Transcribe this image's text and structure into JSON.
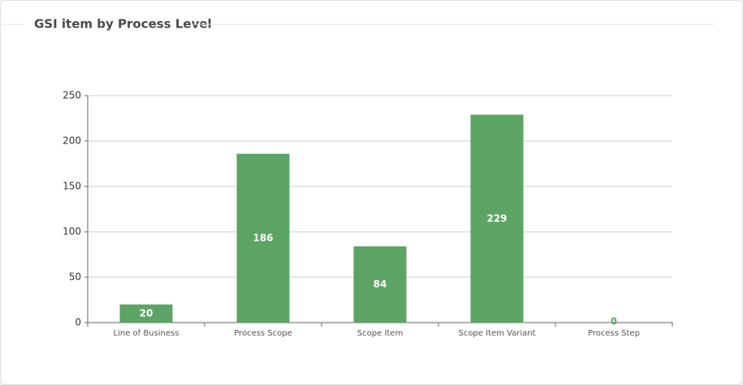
{
  "chart_data": {
    "type": "bar",
    "title": "GSI item by Process Level",
    "categories": [
      "Line of Business",
      "Process Scope",
      "Scope Item",
      "Scope Item Variant",
      "Process Step"
    ],
    "values": [
      20,
      186,
      84,
      229,
      0
    ],
    "color": "#5ba464",
    "ylim": [
      0,
      250
    ],
    "yticks": [
      0,
      50,
      100,
      150,
      200,
      250
    ],
    "grid": true
  }
}
